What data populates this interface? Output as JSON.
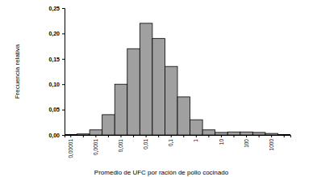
{
  "chart_data": {
    "type": "bar",
    "x_label": "Promedio de UFC por ración de pollo cocinado",
    "y_label": "Frecuencia relativa",
    "categories": [
      "0,00001",
      null,
      "0,0001",
      null,
      "0,001",
      null,
      "0,01",
      null,
      "0,1",
      null,
      "1",
      null,
      "10",
      null,
      "100",
      null,
      "1000",
      null
    ],
    "values": [
      0.001,
      0.002,
      0.01,
      0.04,
      0.1,
      0.17,
      0.22,
      0.19,
      0.135,
      0.075,
      0.03,
      0.01,
      0.005,
      0.006,
      0.006,
      0.005,
      0.003,
      0.001
    ],
    "color": "#a0a0a0",
    "ylim": [
      0,
      0.25
    ],
    "yticks": [
      {
        "value": 0,
        "label": "0,00"
      },
      {
        "value": 0.05,
        "label": "0,05"
      },
      {
        "value": 0.1,
        "label": "0,10"
      },
      {
        "value": 0.15,
        "label": "0,15"
      },
      {
        "value": 0.2,
        "label": "0,20"
      },
      {
        "value": 0.25,
        "label": "0,25"
      }
    ],
    "grid": false
  }
}
